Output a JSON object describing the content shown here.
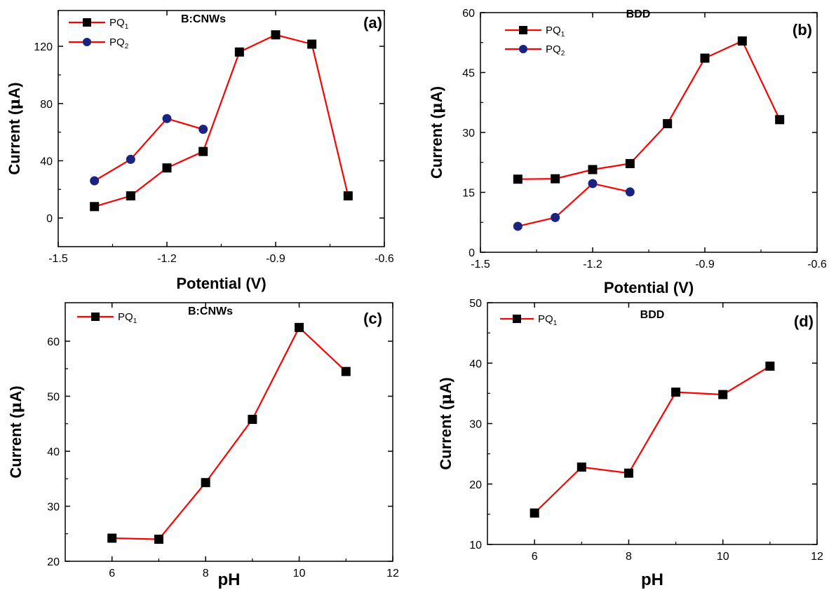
{
  "chart_data": [
    {
      "id": "a",
      "type": "line",
      "panel_label": "(a)",
      "inset_title": "B:CNWs",
      "xlabel": "Potential (V)",
      "ylabel_main": "Current (",
      "ylabel_mu": "μ",
      "ylabel_tail": "A)",
      "xlim": [
        -1.5,
        -0.6
      ],
      "ylim": [
        -20,
        145
      ],
      "xticks": [
        -1.5,
        -1.2,
        -0.9,
        -0.6
      ],
      "xtick_labels": [
        "-1.5",
        "-1.2",
        "-0.9",
        "-0.6"
      ],
      "yticks": [
        0,
        40,
        80,
        120
      ],
      "ytick_labels": [
        "0",
        "40",
        "80",
        "120"
      ],
      "grid": false,
      "legend_position": "top-left",
      "series": [
        {
          "name": "PQ",
          "sub": "1",
          "marker": "square",
          "x": [
            -1.4,
            -1.3,
            -1.2,
            -1.1,
            -1.0,
            -0.9,
            -0.8,
            -0.7
          ],
          "y": [
            8,
            15.5,
            35,
            46.5,
            116,
            128,
            121.5,
            15.5
          ]
        },
        {
          "name": "PQ",
          "sub": "2",
          "marker": "circle",
          "x": [
            -1.4,
            -1.3,
            -1.2,
            -1.1
          ],
          "y": [
            26,
            41,
            69.5,
            62
          ]
        }
      ]
    },
    {
      "id": "b",
      "type": "line",
      "panel_label": "(b)",
      "inset_title": "BDD",
      "xlabel": "Potential (V)",
      "ylabel_main": "Current (",
      "ylabel_mu": "μ",
      "ylabel_tail": "A)",
      "xlim": [
        -1.5,
        -0.6
      ],
      "ylim": [
        0,
        60
      ],
      "xticks": [
        -1.5,
        -1.2,
        -0.9,
        -0.6
      ],
      "xtick_labels": [
        "-1.5",
        "-1.2",
        "-0.9",
        "-0.6"
      ],
      "yticks": [
        0,
        15,
        30,
        45,
        60
      ],
      "ytick_labels": [
        "0",
        "15",
        "30",
        "45",
        "60"
      ],
      "grid": false,
      "legend_position": "top-left",
      "series": [
        {
          "name": "PQ",
          "sub": "1",
          "marker": "square",
          "x": [
            -1.4,
            -1.3,
            -1.2,
            -1.1,
            -1.0,
            -0.9,
            -0.8,
            -0.7
          ],
          "y": [
            18.3,
            18.4,
            20.7,
            22.2,
            32.2,
            48.6,
            52.9,
            33.2
          ]
        },
        {
          "name": "PQ",
          "sub": "2",
          "marker": "circle",
          "x": [
            -1.4,
            -1.3,
            -1.2,
            -1.1
          ],
          "y": [
            6.5,
            8.7,
            17.2,
            15.1
          ]
        }
      ]
    },
    {
      "id": "c",
      "type": "line",
      "panel_label": "(c)",
      "inset_title": "B:CNWs",
      "xlabel": "pH",
      "ylabel_main": "Current (",
      "ylabel_mu": "μ",
      "ylabel_tail": "A)",
      "xlim": [
        5,
        12
      ],
      "ylim": [
        20,
        67
      ],
      "xticks": [
        6,
        8,
        10,
        12
      ],
      "xtick_labels": [
        "6",
        "8",
        "10",
        "12"
      ],
      "yticks": [
        20,
        30,
        40,
        50,
        60
      ],
      "ytick_labels": [
        "20",
        "30",
        "40",
        "50",
        "60"
      ],
      "grid": false,
      "legend_position": "top-left",
      "series": [
        {
          "name": "PQ",
          "sub": "1",
          "marker": "square",
          "x": [
            6,
            7,
            8,
            9,
            10,
            11
          ],
          "y": [
            24.2,
            24.0,
            34.3,
            45.8,
            62.5,
            54.5
          ]
        }
      ]
    },
    {
      "id": "d",
      "type": "line",
      "panel_label": "(d)",
      "inset_title": "BDD",
      "xlabel": "pH",
      "ylabel_main": "Current (",
      "ylabel_mu": "μ",
      "ylabel_tail": "A)",
      "xlim": [
        5,
        12
      ],
      "ylim": [
        10,
        50
      ],
      "xticks": [
        6,
        8,
        10,
        12
      ],
      "xtick_labels": [
        "6",
        "8",
        "10",
        "12"
      ],
      "yticks": [
        10,
        20,
        30,
        40,
        50
      ],
      "ytick_labels": [
        "10",
        "20",
        "30",
        "40",
        "50"
      ],
      "grid": false,
      "legend_position": "top-left",
      "series": [
        {
          "name": "PQ",
          "sub": "1",
          "marker": "square",
          "x": [
            6,
            7,
            8,
            9,
            10,
            11
          ],
          "y": [
            15.2,
            22.8,
            21.8,
            35.2,
            34.8,
            39.5
          ]
        }
      ]
    }
  ],
  "colors": {
    "line": "#ff0000",
    "square_marker": "#000000",
    "circle_marker": "#1a237e",
    "axis": "#000000",
    "background": "#ffffff"
  }
}
